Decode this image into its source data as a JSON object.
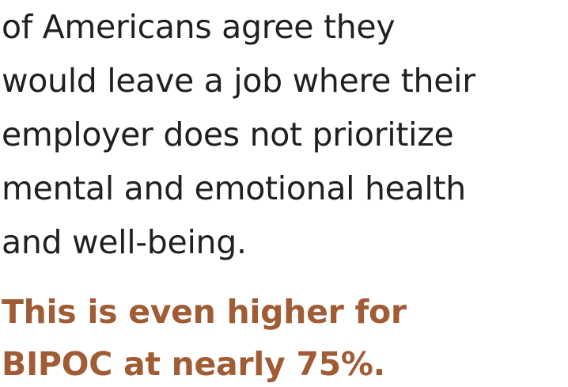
{
  "statement": {
    "lines": [
      "of Americans agree they",
      "would leave a job where their",
      "employer does not prioritize",
      "mental and emotional health",
      "and well-being."
    ]
  },
  "highlight": {
    "lines": [
      "This is even higher for",
      "BIPOC at nearly 75%."
    ],
    "color": "#a05c34"
  },
  "text_color": "#231f20"
}
